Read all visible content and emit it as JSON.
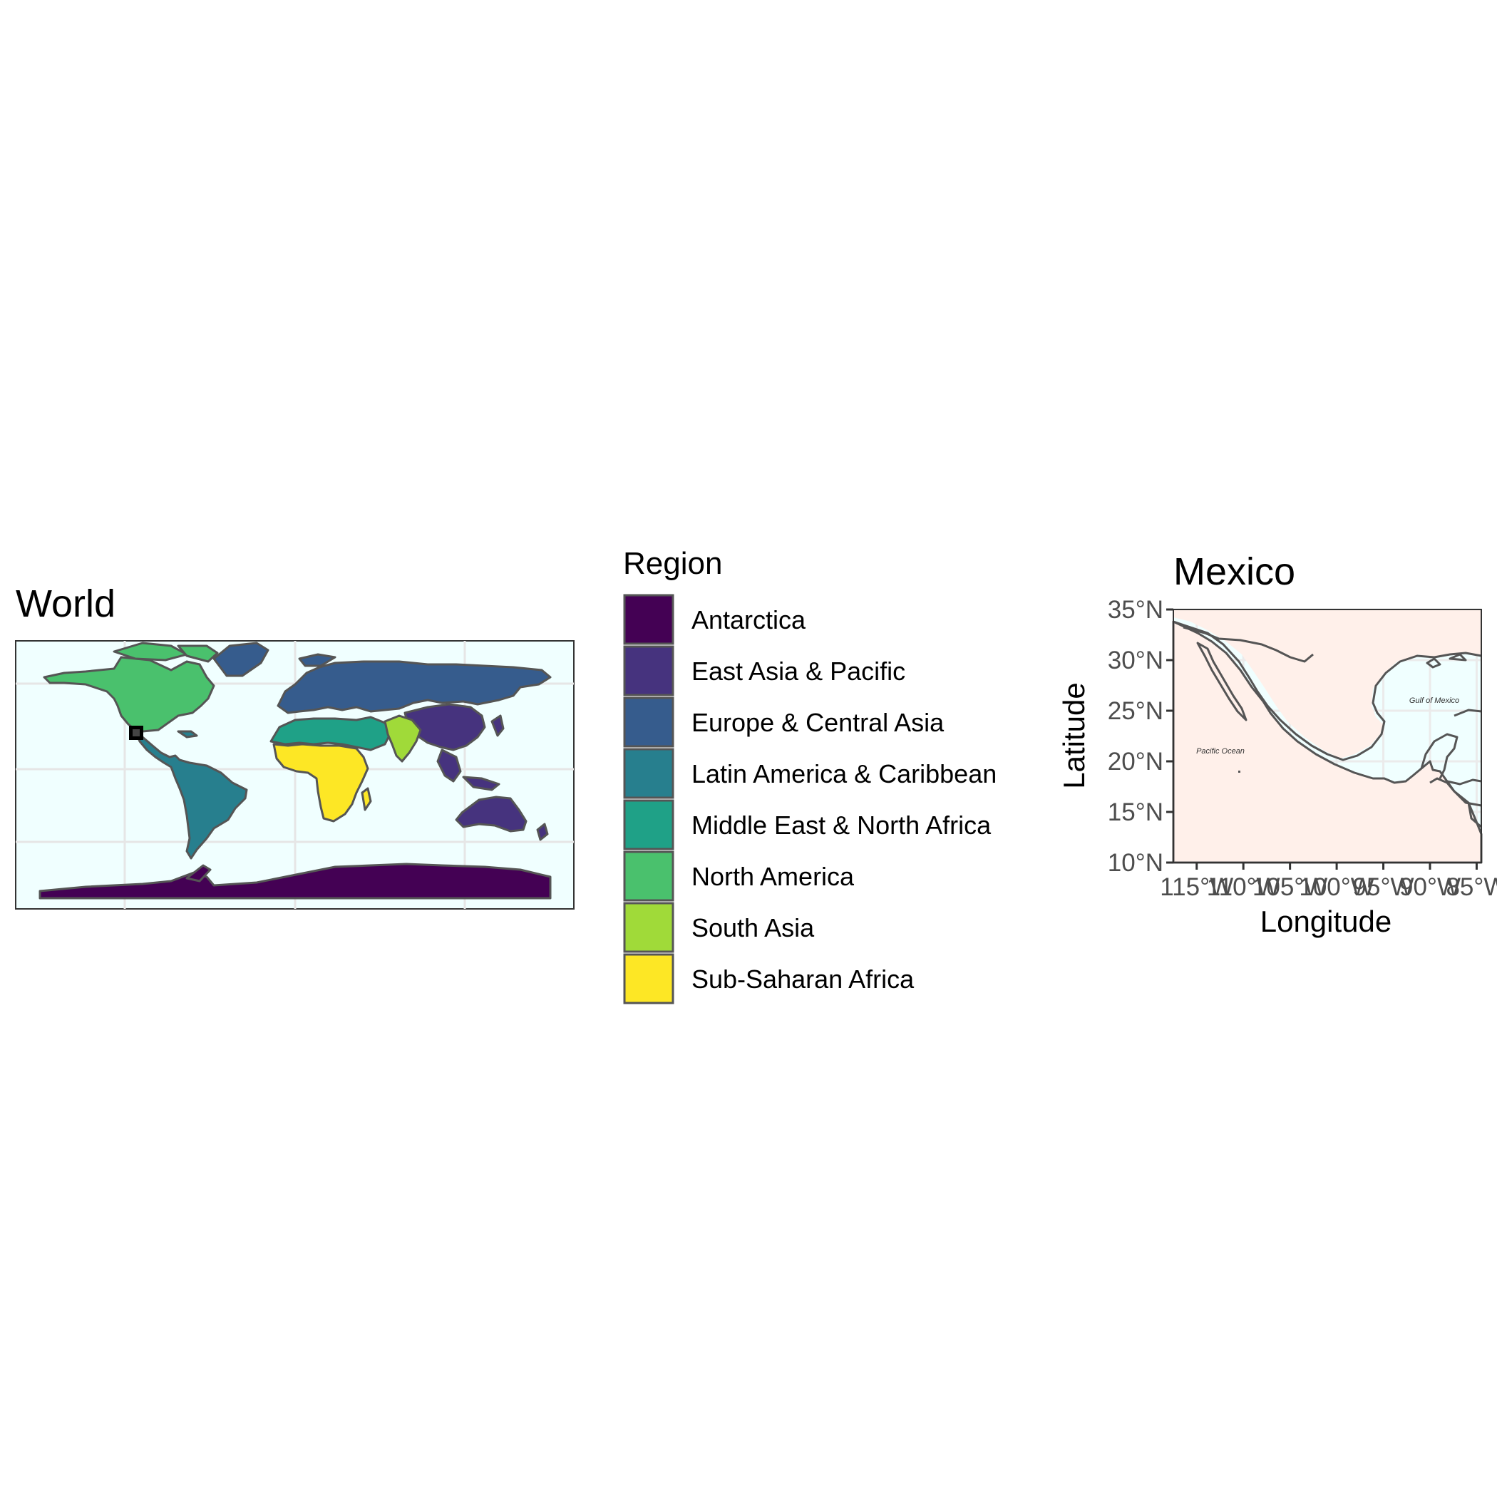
{
  "world": {
    "title": "World"
  },
  "legend": {
    "title": "Region",
    "items": [
      {
        "label": "Antarctica",
        "color": "#440154"
      },
      {
        "label": "East Asia & Pacific",
        "color": "#46337e"
      },
      {
        "label": "Europe & Central Asia",
        "color": "#365c8d"
      },
      {
        "label": "Latin America & Caribbean",
        "color": "#277f8e"
      },
      {
        "label": "Middle East & North Africa",
        "color": "#1fa187"
      },
      {
        "label": "North America",
        "color": "#4ac16d"
      },
      {
        "label": "South Asia",
        "color": "#a0da39"
      },
      {
        "label": "Sub-Saharan Africa",
        "color": "#fde725"
      }
    ]
  },
  "mexico": {
    "title": "Mexico",
    "xlabel": "Longitude",
    "ylabel": "Latitude",
    "x_ticks": [
      "115°W",
      "110°W",
      "105°W",
      "100°W",
      "95°W",
      "90°W",
      "85°W"
    ],
    "y_ticks": [
      "10°N",
      "15°N",
      "20°N",
      "25°N",
      "30°N",
      "35°N"
    ],
    "annotations": {
      "gulf": "Gulf of Mexico",
      "pacific": "Pacific Ocean"
    }
  },
  "colors": {
    "ocean": "#f0ffff",
    "land_inset": "#fff0ea",
    "border": "#555555",
    "grid": "#ebebeb"
  }
}
